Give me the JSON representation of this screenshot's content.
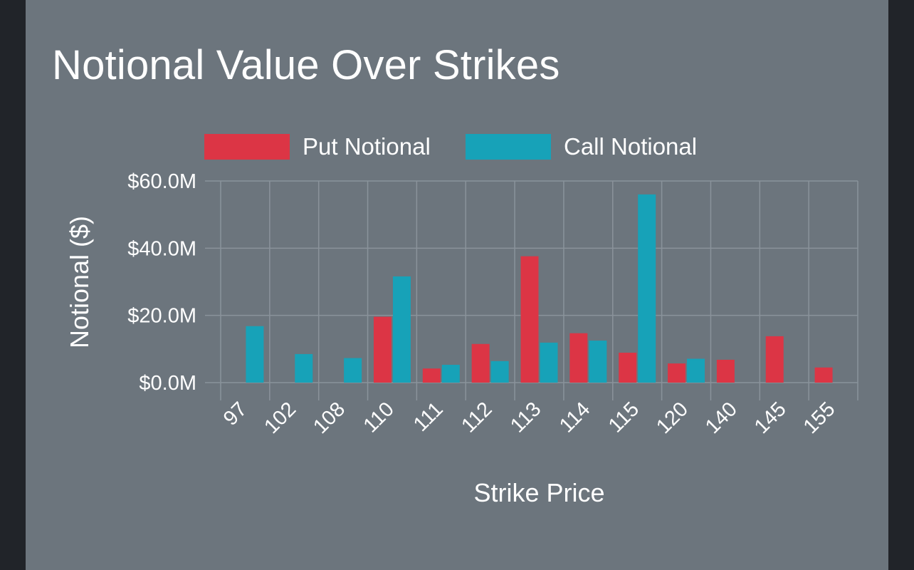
{
  "title": "Notional Value Over Strikes",
  "chart_data": {
    "type": "bar",
    "title": "Notional Value Over Strikes",
    "xlabel": "Strike Price",
    "ylabel": "Notional ($)",
    "categories": [
      "97",
      "102",
      "108",
      "110",
      "111",
      "112",
      "113",
      "114",
      "115",
      "120",
      "140",
      "145",
      "155"
    ],
    "series": [
      {
        "name": "Put Notional",
        "color": "#dc3545",
        "values": [
          0,
          0,
          0,
          19.6,
          4.2,
          11.5,
          37.6,
          14.7,
          8.9,
          5.7,
          6.8,
          13.8,
          4.5
        ]
      },
      {
        "name": "Call Notional",
        "color": "#17a2b8",
        "values": [
          16.8,
          8.5,
          7.3,
          31.6,
          5.3,
          6.4,
          11.9,
          12.5,
          56.0,
          7.1,
          0,
          0,
          0
        ]
      }
    ],
    "ylim": [
      0,
      60
    ],
    "yticks": [
      0,
      20,
      40,
      60
    ],
    "ytick_labels": [
      "$0.0M",
      "$20.0M",
      "$40.0M",
      "$60.0M"
    ],
    "unit": "M",
    "grid": true,
    "legend": "top",
    "colors": {
      "background": "#6c757d",
      "page": "#212429",
      "grid": "#8a939b",
      "text": "#ffffff"
    }
  }
}
